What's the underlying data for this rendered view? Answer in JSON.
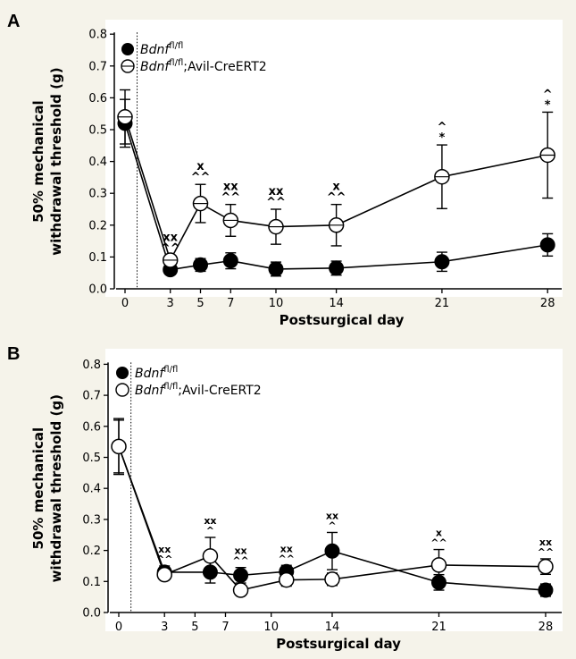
{
  "chart_data": [
    {
      "panel": "A",
      "type": "line",
      "xlabel": "Postsurgical day",
      "ylabel_line1": "50% mechanical",
      "ylabel_line2": "withdrawal threshold (g)",
      "x": [
        0,
        3,
        5,
        7,
        10,
        14,
        21,
        28
      ],
      "x_ticks": [
        "0",
        "3",
        "5",
        "7",
        "10",
        "14",
        "21",
        "28"
      ],
      "y_ticks": [
        "0.0",
        "0.1",
        "0.2",
        "0.3",
        "0.4",
        "0.5",
        "0.6",
        "0.7",
        "0.8"
      ],
      "ylim": [
        0,
        0.8
      ],
      "grid": false,
      "surgery_marker_day": 0.8,
      "legend_position": "top-left",
      "series": [
        {
          "gene": "Bdnf",
          "sup": "fl/fl",
          "suffix": "",
          "marker": "filled",
          "values": [
            0.52,
            0.06,
            0.075,
            0.088,
            0.062,
            0.065,
            0.085,
            0.138
          ],
          "errors": [
            0.075,
            0.015,
            0.02,
            0.025,
            0.022,
            0.022,
            0.03,
            0.035
          ]
        },
        {
          "gene": "Bdnf",
          "sup": "fl/fl",
          "suffix": ";Avil-CreERT2",
          "marker": "open-bar",
          "values": [
            0.54,
            0.09,
            0.268,
            0.215,
            0.195,
            0.2,
            0.352,
            0.42
          ],
          "errors": [
            0.085,
            0.015,
            0.06,
            0.05,
            0.055,
            0.065,
            0.1,
            0.135
          ]
        }
      ],
      "annotations": [
        {
          "x": 3,
          "lines": [
            "xx",
            "^^"
          ]
        },
        {
          "x": 5,
          "lines": [
            "x",
            "^^"
          ]
        },
        {
          "x": 7,
          "lines": [
            "xx",
            "^^"
          ]
        },
        {
          "x": 10,
          "lines": [
            "xx",
            "^^"
          ]
        },
        {
          "x": 14,
          "lines": [
            "x",
            "^^"
          ]
        },
        {
          "x": 21,
          "lines": [
            "^",
            "*"
          ]
        },
        {
          "x": 28,
          "lines": [
            "^",
            "*"
          ]
        }
      ]
    },
    {
      "panel": "B",
      "type": "line",
      "xlabel": "Postsurgical day",
      "ylabel_line1": "50% mechanical",
      "ylabel_line2": "withdrawal threshold (g)",
      "x_filled": [
        0,
        3,
        6,
        8,
        11,
        14,
        21,
        28
      ],
      "x_open": [
        0,
        3,
        6,
        8,
        11,
        14,
        21,
        28
      ],
      "x_ticks": [
        "0",
        "3",
        "5",
        "7",
        "10",
        "14",
        "21",
        "28"
      ],
      "x_tick_values": [
        0,
        3,
        5,
        7,
        10,
        14,
        21,
        28
      ],
      "y_ticks": [
        "0.0",
        "0.1",
        "0.2",
        "0.3",
        "0.4",
        "0.5",
        "0.6",
        "0.7",
        "0.8"
      ],
      "ylim": [
        0,
        0.8
      ],
      "grid": false,
      "surgery_marker_day": 0.8,
      "legend_position": "top-left",
      "series": [
        {
          "gene": "Bdnf",
          "sup": "fl/fl",
          "suffix": "",
          "marker": "filled",
          "values": [
            0.535,
            0.13,
            0.13,
            0.12,
            0.132,
            0.198,
            0.097,
            0.072
          ],
          "errors": [
            0.085,
            0.02,
            0.035,
            0.025,
            0.02,
            0.06,
            0.025,
            0.02
          ]
        },
        {
          "gene": "Bdnf",
          "sup": "fl/fl",
          "suffix": ";Avil-CreERT2",
          "marker": "open",
          "values": [
            0.535,
            0.122,
            0.182,
            0.072,
            0.105,
            0.107,
            0.153,
            0.148
          ],
          "errors": [
            0.09,
            0.015,
            0.06,
            0.01,
            0.02,
            0.02,
            0.05,
            0.025
          ]
        }
      ],
      "annotations": [
        {
          "x": 3,
          "lines": [
            "xx",
            "^^"
          ]
        },
        {
          "x": 6,
          "lines": [
            "xx",
            "^"
          ]
        },
        {
          "x": 8,
          "lines": [
            "xx",
            "^^"
          ]
        },
        {
          "x": 11,
          "lines": [
            "xx",
            "^^"
          ]
        },
        {
          "x": 14,
          "lines": [
            "xx",
            "^"
          ]
        },
        {
          "x": 21,
          "lines": [
            "x",
            "^^"
          ]
        },
        {
          "x": 28,
          "lines": [
            "xx",
            "^^"
          ]
        }
      ]
    }
  ]
}
